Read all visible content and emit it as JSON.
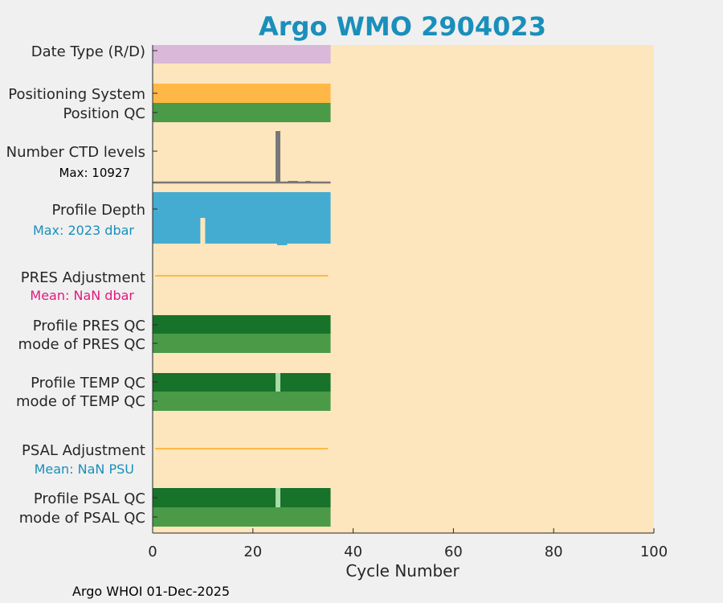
{
  "chart_data": {
    "type": "bar",
    "title": "Argo WMO 2904023",
    "xlabel": "Cycle Number",
    "xlim": [
      0,
      100
    ],
    "xticks": [
      0,
      20,
      40,
      60,
      80,
      100
    ],
    "footer": "Argo WHOI 01-Dec-2025",
    "last_cycle": 35.5,
    "rows": {
      "date_type": {
        "label": "Date Type (R/D)",
        "color": "#d9b8d9"
      },
      "positioning_system": {
        "label": "Positioning System",
        "color": "#ffb845"
      },
      "position_qc": {
        "label": "Position QC",
        "color": "#4a9a48"
      },
      "ctd_levels": {
        "label": "Number CTD levels",
        "note": "Max: 10927",
        "max": 10927,
        "spike_cycle": 25,
        "line_color": "#777777"
      },
      "profile_depth": {
        "label": "Profile Depth",
        "note": "Max: 2023 dbar",
        "max_dbar": 2023,
        "color": "#44acd1",
        "note_color": "#1a8fbb",
        "short_cycles": [
          10
        ],
        "shallow_cycles": [
          25
        ]
      },
      "pres_adjustment": {
        "label": "PRES Adjustment",
        "note": "Mean:  NaN dbar",
        "note_color": "#e0197d",
        "line_color": "#ffb845"
      },
      "profile_pres_qc": {
        "label": "Profile PRES QC",
        "color": "#17722a"
      },
      "mode_pres_qc": {
        "label": "mode of PRES QC",
        "color": "#4a9a48"
      },
      "profile_temp_qc": {
        "label": "Profile TEMP QC",
        "color": "#17722a",
        "gap_cycles": [
          25
        ],
        "gap_color": "#a9dba9"
      },
      "mode_temp_qc": {
        "label": "mode of TEMP QC",
        "color": "#4a9a48"
      },
      "psal_adjustment": {
        "label": "PSAL Adjustment",
        "note": "Mean:  NaN PSU",
        "note_color": "#1a8fbb",
        "line_color": "#ffb845"
      },
      "profile_psal_qc": {
        "label": "Profile PSAL QC",
        "color": "#17722a",
        "gap_cycles": [
          25
        ],
        "gap_color": "#a9dba9"
      },
      "mode_psal_qc": {
        "label": "mode of PSAL QC",
        "color": "#4a9a48"
      }
    },
    "colors": {
      "background": "#fde6bd",
      "title": "#1a8fbb",
      "figure": "#f0f0f0",
      "text": "#262626"
    }
  }
}
